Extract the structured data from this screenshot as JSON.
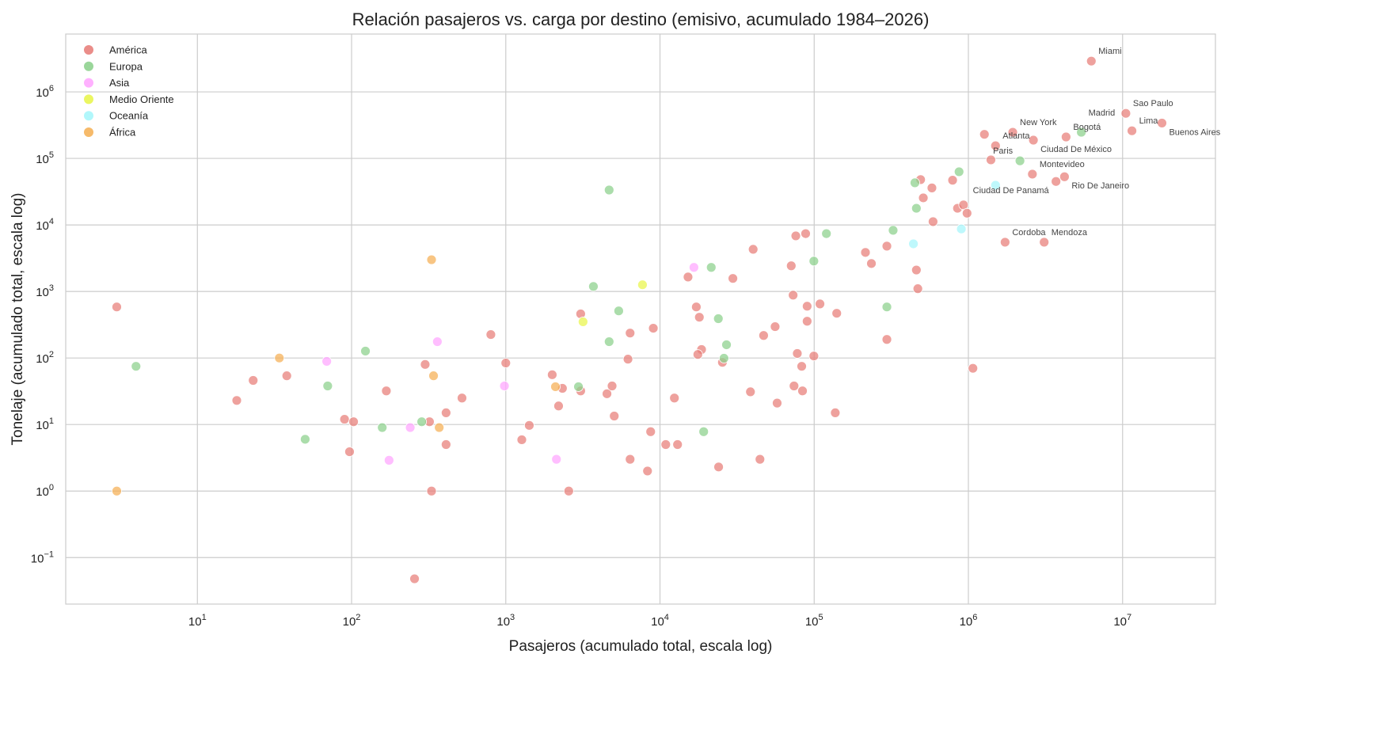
{
  "chart_data": {
    "type": "scatter",
    "title": "Relación pasajeros vs. carga por destino (emisivo, acumulado 1984–2026)",
    "xlabel": "Pasajeros (acumulado total, escala log)",
    "ylabel": "Tonelaje (acumulado total, escala log)",
    "xscale": "log",
    "yscale": "log",
    "xlim": [
      1.4,
      40000000
    ],
    "ylim": [
      0.02,
      7400000
    ],
    "x_ticks": [
      10,
      100,
      1000,
      10000,
      100000,
      1000000,
      10000000
    ],
    "y_ticks": [
      0.1,
      1,
      10,
      100,
      1000,
      10000,
      100000,
      1000000
    ],
    "grid": true,
    "legend_position": "top-left",
    "series": [
      {
        "name": "América",
        "color": "#e8817c",
        "points": [
          [
            6270000,
            2900000,
            "Miami"
          ],
          [
            10500000,
            475000,
            "Sao Paulo"
          ],
          [
            18000000,
            340000,
            "Buenos Aires"
          ],
          [
            11500000,
            260000,
            "Lima"
          ],
          [
            4300000,
            210000,
            "Bogotá"
          ],
          [
            2640000,
            188000,
            "Ciudad De México"
          ],
          [
            1940000,
            247000,
            "New York"
          ],
          [
            1500000,
            155000,
            "Atlanta"
          ],
          [
            2600000,
            58000,
            "Montevideo"
          ],
          [
            4200000,
            53000,
            "Rio De Janeiro"
          ],
          [
            3700000,
            45000,
            "Ciudad De Panamá"
          ],
          [
            1730000,
            5500,
            "Cordoba"
          ],
          [
            3100000,
            5500,
            "Mendoza"
          ],
          [
            1270000,
            230000
          ],
          [
            1400000,
            95000
          ],
          [
            790000,
            47000
          ],
          [
            3,
            585
          ],
          [
            18,
            23
          ],
          [
            23,
            46
          ],
          [
            38,
            54
          ],
          [
            90,
            12
          ],
          [
            103,
            11
          ],
          [
            97,
            3.9
          ],
          [
            168,
            32
          ],
          [
            300,
            80
          ],
          [
            320,
            11
          ],
          [
            330,
            1
          ],
          [
            256,
            0.048
          ],
          [
            410,
            15
          ],
          [
            410,
            5
          ],
          [
            520,
            25
          ],
          [
            800,
            225
          ],
          [
            1000,
            84
          ],
          [
            1270,
            5.9
          ],
          [
            1420,
            9.7
          ],
          [
            2000,
            56
          ],
          [
            2330,
            35
          ],
          [
            2200,
            19
          ],
          [
            2560,
            1
          ],
          [
            3060,
            460
          ],
          [
            3060,
            32
          ],
          [
            5050,
            13.4
          ],
          [
            4530,
            29
          ],
          [
            4890,
            38
          ],
          [
            6400,
            237
          ],
          [
            6200,
            96
          ],
          [
            6400,
            3
          ],
          [
            9050,
            280
          ],
          [
            8700,
            7.8
          ],
          [
            8300,
            2
          ],
          [
            10900,
            5
          ],
          [
            13000,
            5
          ],
          [
            12400,
            25
          ],
          [
            15200,
            1650
          ],
          [
            17200,
            585
          ],
          [
            18000,
            410
          ],
          [
            18600,
            134
          ],
          [
            17600,
            113
          ],
          [
            25400,
            86
          ],
          [
            24000,
            2.3
          ],
          [
            29700,
            1570
          ],
          [
            40200,
            4300
          ],
          [
            38600,
            31
          ],
          [
            44500,
            3
          ],
          [
            47000,
            218
          ],
          [
            55800,
            296
          ],
          [
            57500,
            21
          ],
          [
            71000,
            2430
          ],
          [
            73000,
            880
          ],
          [
            76000,
            6850
          ],
          [
            88000,
            7400
          ],
          [
            77700,
            117
          ],
          [
            74000,
            38
          ],
          [
            83000,
            75
          ],
          [
            84000,
            32
          ],
          [
            90000,
            600
          ],
          [
            90000,
            357
          ],
          [
            99500,
            107
          ],
          [
            109000,
            650
          ],
          [
            140000,
            470
          ],
          [
            137000,
            15
          ],
          [
            215000,
            3860
          ],
          [
            235000,
            2630
          ],
          [
            296000,
            4800
          ],
          [
            296000,
            190
          ],
          [
            460000,
            2100
          ],
          [
            470000,
            1100
          ],
          [
            490000,
            48000
          ],
          [
            510000,
            25500
          ],
          [
            580000,
            36000
          ],
          [
            590000,
            11200
          ],
          [
            850000,
            17800
          ],
          [
            930000,
            20000
          ],
          [
            980000,
            15000
          ],
          [
            1070000,
            70
          ]
        ]
      },
      {
        "name": "Europa",
        "color": "#8fd18f",
        "points": [
          [
            5400000,
            247000,
            "Madrid"
          ],
          [
            2160000,
            92000,
            "Paris"
          ],
          [
            870000,
            63000
          ],
          [
            4,
            75
          ],
          [
            50,
            6
          ],
          [
            70,
            38
          ],
          [
            123,
            127
          ],
          [
            158,
            9
          ],
          [
            285,
            11
          ],
          [
            2960,
            37
          ],
          [
            4680,
            33500
          ],
          [
            3700,
            1190
          ],
          [
            4680,
            176
          ],
          [
            5400,
            510
          ],
          [
            21500,
            2300
          ],
          [
            23900,
            390
          ],
          [
            27000,
            158
          ],
          [
            26000,
            99
          ],
          [
            19200,
            7.8
          ],
          [
            99500,
            2860
          ],
          [
            120000,
            7400
          ],
          [
            325000,
            8300
          ],
          [
            296000,
            585
          ],
          [
            450000,
            43000
          ],
          [
            460000,
            17800
          ]
        ]
      },
      {
        "name": "Asia",
        "color": "#ffa8ff",
        "points": [
          [
            69,
            89
          ],
          [
            175,
            2.9
          ],
          [
            240,
            9
          ],
          [
            360,
            176
          ],
          [
            980,
            38
          ],
          [
            2130,
            3
          ],
          [
            16600,
            2300
          ]
        ]
      },
      {
        "name": "Medio Oriente",
        "color": "#e9f550",
        "points": [
          [
            3170,
            350
          ],
          [
            7700,
            1260
          ]
        ]
      },
      {
        "name": "Oceanía",
        "color": "#a8f6fb",
        "points": [
          [
            1500000,
            39500
          ],
          [
            440000,
            5200
          ],
          [
            900000,
            8700
          ]
        ]
      },
      {
        "name": "África",
        "color": "#f5b25a",
        "points": [
          [
            3,
            1
          ],
          [
            34,
            100
          ],
          [
            330,
            3000
          ],
          [
            340,
            54
          ],
          [
            370,
            9
          ],
          [
            2100,
            37
          ]
        ]
      }
    ]
  }
}
